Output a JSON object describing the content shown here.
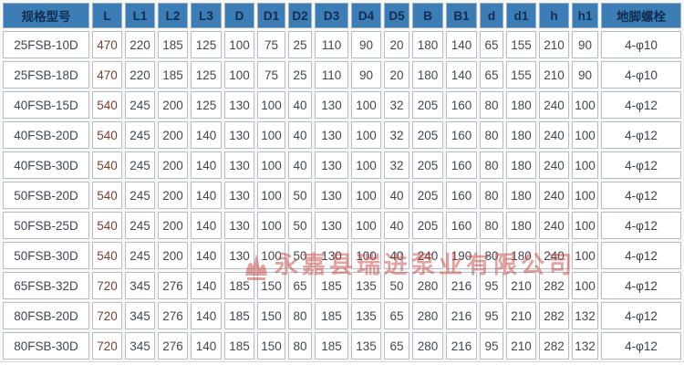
{
  "table": {
    "columns": [
      "规格型号",
      "L",
      "L1",
      "L2",
      "L3",
      "D",
      "D1",
      "D2",
      "D3",
      "D4",
      "D5",
      "B",
      "B1",
      "d",
      "d1",
      "h",
      "h1",
      "地脚螺栓"
    ],
    "rows": [
      [
        "25FSB-10D",
        "470",
        "220",
        "185",
        "125",
        "100",
        "75",
        "25",
        "110",
        "90",
        "20",
        "180",
        "140",
        "65",
        "155",
        "210",
        "90",
        "4-φ10"
      ],
      [
        "25FSB-18D",
        "470",
        "220",
        "185",
        "125",
        "100",
        "75",
        "25",
        "110",
        "90",
        "20",
        "180",
        "140",
        "65",
        "155",
        "210",
        "90",
        "4-φ10"
      ],
      [
        "40FSB-15D",
        "540",
        "245",
        "200",
        "125",
        "130",
        "100",
        "40",
        "130",
        "100",
        "32",
        "205",
        "160",
        "80",
        "180",
        "240",
        "100",
        "4-φ12"
      ],
      [
        "40FSB-20D",
        "540",
        "245",
        "200",
        "140",
        "130",
        "100",
        "40",
        "130",
        "100",
        "32",
        "205",
        "160",
        "80",
        "180",
        "240",
        "100",
        "4-φ12"
      ],
      [
        "40FSB-30D",
        "540",
        "245",
        "200",
        "140",
        "130",
        "100",
        "40",
        "130",
        "100",
        "32",
        "205",
        "160",
        "80",
        "180",
        "240",
        "100",
        "4-φ12"
      ],
      [
        "50FSB-20D",
        "540",
        "245",
        "200",
        "140",
        "130",
        "100",
        "50",
        "130",
        "100",
        "40",
        "205",
        "160",
        "80",
        "180",
        "240",
        "100",
        "4-φ12"
      ],
      [
        "50FSB-25D",
        "540",
        "245",
        "200",
        "140",
        "130",
        "100",
        "50",
        "130",
        "100",
        "40",
        "205",
        "160",
        "80",
        "180",
        "240",
        "100",
        "4-φ12"
      ],
      [
        "50FSB-30D",
        "540",
        "245",
        "200",
        "140",
        "130",
        "100",
        "50",
        "130",
        "100",
        "40",
        "240",
        "190",
        "80",
        "180",
        "240",
        "100",
        "4-φ12"
      ],
      [
        "65FSB-32D",
        "720",
        "345",
        "276",
        "140",
        "185",
        "150",
        "65",
        "185",
        "135",
        "50",
        "280",
        "216",
        "95",
        "210",
        "282",
        "100",
        "4-φ12"
      ],
      [
        "80FSB-20D",
        "720",
        "345",
        "276",
        "140",
        "185",
        "150",
        "80",
        "185",
        "135",
        "65",
        "280",
        "216",
        "95",
        "210",
        "282",
        "132",
        "4-φ12"
      ],
      [
        "80FSB-30D",
        "720",
        "345",
        "276",
        "140",
        "185",
        "150",
        "80",
        "185",
        "135",
        "65",
        "280",
        "216",
        "95",
        "210",
        "282",
        "132",
        "4-φ12"
      ]
    ]
  },
  "watermark": {
    "text": "永嘉县瑞进泵业有限公司",
    "color": "#c5423c"
  },
  "colors": {
    "header_bg": "#3b7db4",
    "header_text": "#112e52",
    "cell_bg": "#ffffff",
    "cell_border": "#b7bdc4",
    "data_text": "#44464f",
    "l_column_text": "#7a4034",
    "watermark_red": "#c5423c"
  }
}
